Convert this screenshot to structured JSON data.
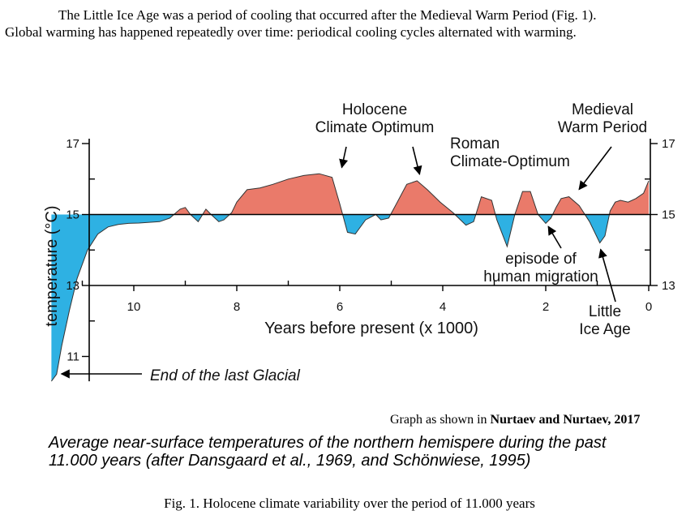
{
  "intro": {
    "line1": "The Little Ice Age was a period of cooling that occurred after the Medieval Warm Period (Fig. 1).",
    "line2": "Global warming has happened repeatedly over time: periodical cooling cycles alternated with warming."
  },
  "chart_data": {
    "type": "area",
    "ylabel": "temperature (°C)",
    "xlabel": "Years before present (x 1000)",
    "xlim": [
      11.6,
      0
    ],
    "ylim": [
      10.3,
      17
    ],
    "baseline": 15,
    "x_ticks": [
      10,
      8,
      6,
      4,
      2,
      0
    ],
    "x_tick_labels": [
      "10",
      "8",
      "6",
      "4",
      "2",
      "0"
    ],
    "y_ticks": [
      17,
      15,
      13,
      11
    ],
    "y_tick_labels_left": [
      "17",
      "15",
      "13",
      "11"
    ],
    "y_ticks_right": [
      17,
      15,
      13
    ],
    "y_tick_labels_right": [
      "17",
      "15",
      "13"
    ],
    "colors": {
      "above": "#ea7a6a",
      "below": "#2eb1e3",
      "line": "#000000"
    },
    "series": [
      {
        "x": [
          11.6,
          11.5,
          11.4,
          11.25,
          11.1,
          10.9,
          10.7,
          10.5,
          10.3,
          10.1,
          9.9,
          9.7,
          9.5,
          9.3,
          9.1,
          9.0,
          8.9,
          8.75,
          8.6,
          8.5,
          8.35,
          8.25,
          8.1,
          8.0,
          7.8,
          7.55,
          7.3,
          7.0,
          6.7,
          6.4,
          6.15,
          6.0,
          5.85,
          5.7,
          5.5,
          5.3,
          5.2,
          5.05,
          4.9,
          4.7,
          4.5,
          4.3,
          4.05,
          3.8,
          3.55,
          3.4,
          3.25,
          3.05,
          2.95,
          2.75,
          2.6,
          2.45,
          2.3,
          2.15,
          2.0,
          1.9,
          1.8,
          1.7,
          1.55,
          1.35,
          1.15,
          0.95,
          0.85,
          0.75,
          0.65,
          0.55,
          0.4,
          0.25,
          0.1,
          0.0
        ],
        "y": [
          10.3,
          10.5,
          11.3,
          12.3,
          13.2,
          14.0,
          14.45,
          14.65,
          14.72,
          14.75,
          14.76,
          14.78,
          14.8,
          14.9,
          15.15,
          15.2,
          15.0,
          14.8,
          15.15,
          15.0,
          14.8,
          14.85,
          15.05,
          15.35,
          15.7,
          15.75,
          15.85,
          16.0,
          16.1,
          16.15,
          16.05,
          15.3,
          14.5,
          14.45,
          14.85,
          15.0,
          14.85,
          14.9,
          15.3,
          15.85,
          15.95,
          15.7,
          15.35,
          15.05,
          14.7,
          14.8,
          15.5,
          15.4,
          14.85,
          14.1,
          15.0,
          15.65,
          15.65,
          15.0,
          14.75,
          14.9,
          15.2,
          15.45,
          15.5,
          15.25,
          14.8,
          14.2,
          14.4,
          15.1,
          15.35,
          15.4,
          15.35,
          15.45,
          15.6,
          15.95
        ]
      }
    ],
    "annotations": [
      {
        "text_lines": [
          "Holocene",
          "Climate Optimum"
        ],
        "x": 6.15,
        "y": 16.05
      },
      {
        "text_lines": [
          "Roman",
          "Climate-Optimum"
        ],
        "x": 4.45,
        "y": 15.95
      },
      {
        "text_lines": [
          "Medieval",
          "Warm Period"
        ],
        "x": 1.4,
        "y": 15.5
      },
      {
        "text_lines": [
          "episode of",
          "human migration"
        ],
        "x": 1.95,
        "y": 14.8
      },
      {
        "text_lines": [
          "Little",
          "Ice Age"
        ],
        "x": 0.95,
        "y": 14.2
      },
      {
        "text_lines": [
          "End of the last Glacial"
        ],
        "x": 11.5,
        "y": 10.5
      }
    ]
  },
  "credit": {
    "prefix": "Graph as shown in ",
    "source": "Nurtaev and Nurtaev, 2017"
  },
  "subcaption": {
    "line1": "Average near-surface temperatures of the northern hemispere during the past",
    "line2": "11.000 years (after Dansgaard et al., 1969, and Schönwiese, 1995)"
  },
  "figure_caption": "Fig. 1. Holocene climate variability over the period of 11.000 years"
}
